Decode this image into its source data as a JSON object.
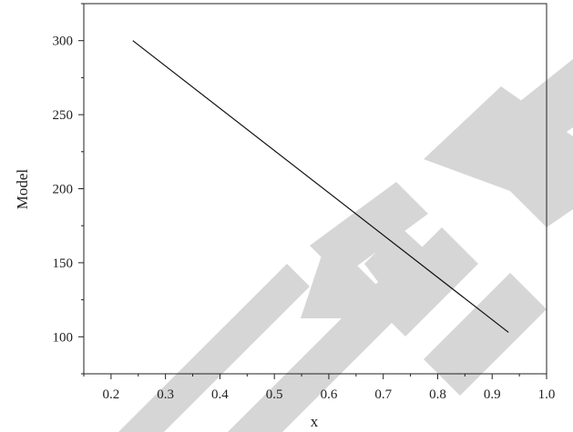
{
  "chart_data": {
    "type": "line",
    "title": "",
    "xlabel": "x",
    "ylabel": "Model",
    "xlim": [
      0.15,
      1.0
    ],
    "ylim": [
      75,
      325
    ],
    "x_ticks": [
      0.2,
      0.3,
      0.4,
      0.5,
      0.6,
      0.7,
      0.8,
      0.9,
      1.0
    ],
    "x_tick_labels": [
      "0.2",
      "0.3",
      "0.4",
      "0.5",
      "0.6",
      "0.7",
      "0.8",
      "0.9",
      "1.0"
    ],
    "y_ticks": [
      100,
      150,
      200,
      250,
      300
    ],
    "y_tick_labels": [
      "100",
      "150",
      "200",
      "250",
      "300"
    ],
    "grid": false,
    "legend": "none",
    "series": [
      {
        "x": [
          0.24,
          0.93
        ],
        "y": [
          300,
          103
        ]
      }
    ]
  },
  "colors": {
    "line": "#111111",
    "axes": "#222222",
    "watermark": "#d6d6d6"
  }
}
